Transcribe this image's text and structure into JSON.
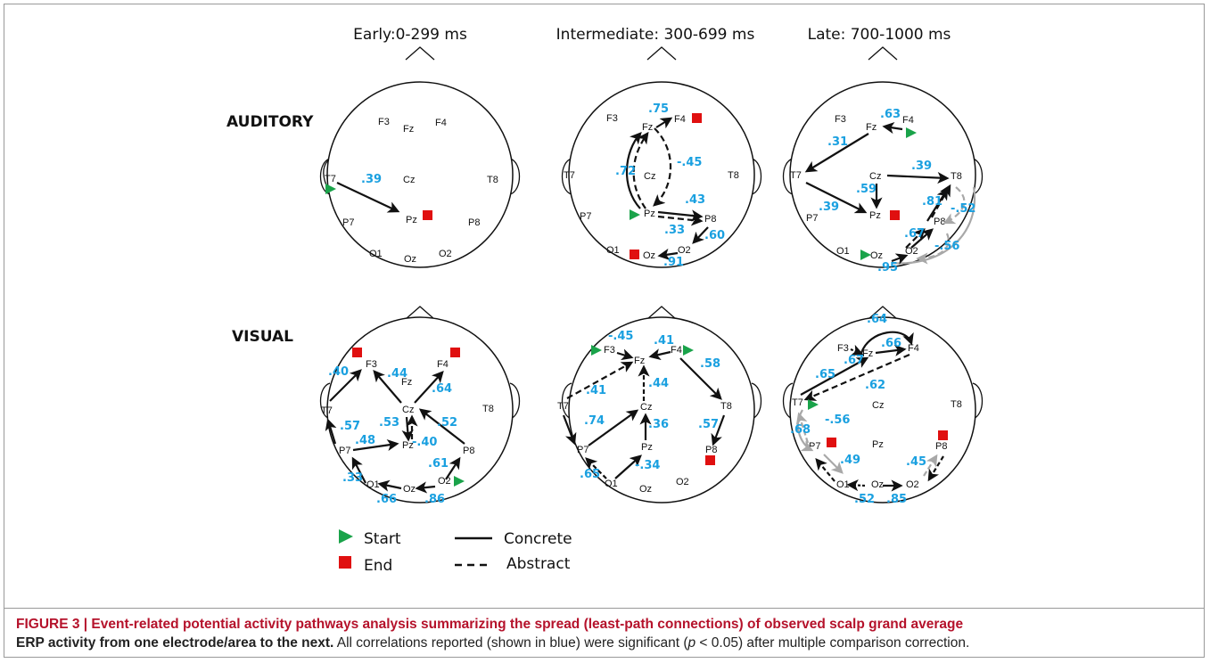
{
  "periods": [
    "Early:0-299 ms",
    "Intermediate: 300-699 ms",
    "Late: 700-1000 ms"
  ],
  "rows": [
    "AUDITORY",
    "VISUAL"
  ],
  "legend": {
    "start": "Start",
    "end": "End",
    "concrete": "Concrete",
    "abstract": "Abstract"
  },
  "colors": {
    "correlation": "#1aa0e0",
    "start": "#1aa34a",
    "end": "#e01010",
    "secondary_path": "#a8a8a8"
  },
  "caption": {
    "label": "FIGURE 3 | Event-related potential activity pathways analysis summarizing the spread (least-path connections) of observed scalp grand average",
    "label2": "ERP activity from one electrode/area to the next.",
    "text_a": " All correlations reported (shown in blue) were significant (",
    "p": "p",
    "text_b": " < 0.05) after multiple comparison correction."
  },
  "heads": [
    {
      "id": "auditory-early",
      "electrodes": [
        "F3",
        "Fz",
        "F4",
        "T7",
        "Cz",
        "T8",
        "Pz",
        "P7",
        "P8",
        "O1",
        "Oz",
        "O2"
      ],
      "coefficients": [
        ".39"
      ],
      "start": [
        "T7"
      ],
      "end": [
        "Pz"
      ]
    },
    {
      "id": "auditory-intermediate",
      "electrodes": [
        "F3",
        "Fz",
        "F4",
        "T7",
        "Cz",
        "T8",
        "Pz",
        "P7",
        "P8",
        "O1",
        "Oz",
        "O2"
      ],
      "coefficients": [
        ".75",
        "-.45",
        ".72",
        ".43",
        ".33",
        ".60",
        ".91"
      ],
      "start": [
        "Pz"
      ],
      "end": [
        "F4",
        "O1"
      ]
    },
    {
      "id": "auditory-late",
      "electrodes": [
        "F3",
        "Fz",
        "F4",
        "T7",
        "Cz",
        "T8",
        "Pz",
        "P7",
        "P8",
        "O1",
        "Oz",
        "O2"
      ],
      "coefficients": [
        ".63",
        ".31",
        ".39",
        ".59",
        ".39",
        ".81",
        "-.52",
        ".67",
        "-.56",
        ".95"
      ],
      "start": [
        "F4",
        "Oz"
      ],
      "end": [
        "Pz"
      ]
    },
    {
      "id": "visual-early",
      "electrodes": [
        "F3",
        "Fz",
        "F4",
        "T7",
        "Cz",
        "T8",
        "Pz",
        "P7",
        "P8",
        "O1",
        "Oz",
        "O2"
      ],
      "coefficients": [
        ".40",
        ".44",
        ".64",
        ".57",
        ".53",
        ".52",
        ".48",
        "-.40",
        ".61",
        ".33",
        ".66",
        ".86"
      ],
      "start": [
        "O2"
      ],
      "end": [
        "F3",
        "F4"
      ]
    },
    {
      "id": "visual-intermediate",
      "electrodes": [
        "F3",
        "Fz",
        "F4",
        "T7",
        "Cz",
        "T8",
        "Pz",
        "P7",
        "P8",
        "O1",
        "Oz",
        "O2"
      ],
      "coefficients": [
        "-.45",
        ".41",
        ".58",
        ".41",
        ".44",
        ".74",
        ".36",
        ".57",
        ".65",
        "-.34"
      ],
      "start": [
        "F3",
        "F4"
      ],
      "end": [
        "P8"
      ]
    },
    {
      "id": "visual-late",
      "electrodes": [
        "F3",
        "Fz",
        "F4",
        "T7",
        "Cz",
        "T8",
        "Pz",
        "P7",
        "P8",
        "O1",
        "Oz",
        "O2"
      ],
      "coefficients": [
        ".64",
        ".66",
        ".67",
        ".65",
        ".62",
        "-.56",
        ".68",
        ".49",
        ".45",
        ".52",
        ".85"
      ],
      "start": [
        "T7"
      ],
      "end": [
        "P7",
        "P8"
      ]
    }
  ]
}
